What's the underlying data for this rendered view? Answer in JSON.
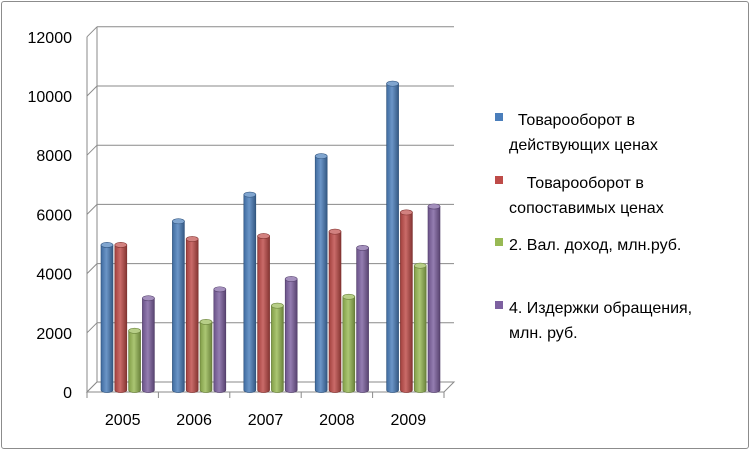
{
  "chart_data": {
    "type": "bar",
    "categories": [
      "2005",
      "2006",
      "2007",
      "2008",
      "2009"
    ],
    "series": [
      {
        "name": "Товарооборот в действующих ценах",
        "legend_lines": [
          "  Товарооборот в",
          "действующих ценах"
        ],
        "color": "#4A7EBB",
        "values": [
          4900,
          5700,
          6600,
          7900,
          10350
        ]
      },
      {
        "name": "Товарооборот в сопоставимых ценах",
        "legend_lines": [
          "    Товарооборот в",
          "сопоставимых ценах"
        ],
        "color": "#BE4B48",
        "values": [
          4900,
          5100,
          5200,
          5350,
          6000
        ]
      },
      {
        "name": "2. Вал. доход, млн.руб.",
        "legend_lines": [
          "2. Вал. доход, млн.руб."
        ],
        "color": "#98B954",
        "values": [
          2000,
          2300,
          2850,
          3150,
          4200
        ]
      },
      {
        "name": "4. Издержки обращения, млн. руб.",
        "legend_lines": [
          "4. Издержки обращения,",
          "млн. руб."
        ],
        "color": "#7D60A0",
        "values": [
          3100,
          3400,
          3750,
          4800,
          6200
        ]
      }
    ],
    "yticks": [
      "0",
      "2000",
      "4000",
      "6000",
      "8000",
      "10000",
      "12000"
    ],
    "ylim": [
      0,
      12000
    ],
    "grid": true,
    "legend_position": "right",
    "title": "",
    "xlabel": "",
    "ylabel": ""
  }
}
